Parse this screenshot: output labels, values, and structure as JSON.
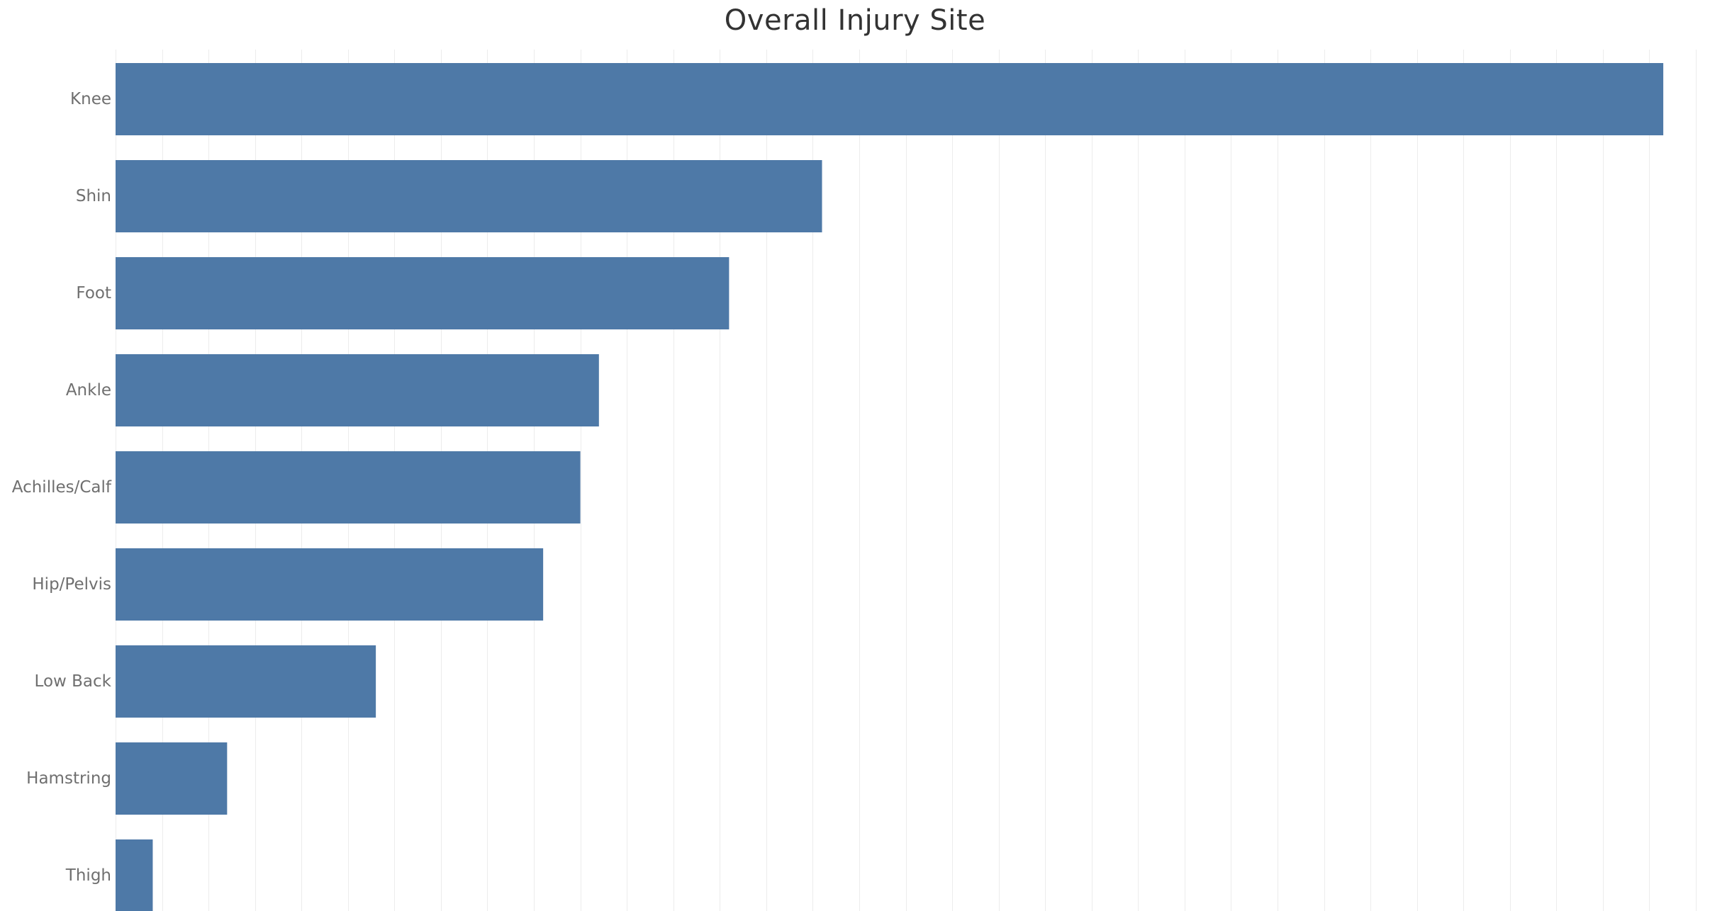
{
  "title": "Overall Injury Site",
  "colors": {
    "bar": "#4e79a7",
    "gridline": "#ececec",
    "label": "#6f6f6f",
    "title": "#333333",
    "background": "#ffffff"
  },
  "chart_data": {
    "type": "bar",
    "orientation": "horizontal",
    "title": "Overall Injury Site",
    "xlabel": "",
    "ylabel": "",
    "categories": [
      "Knee",
      "Shin",
      "Foot",
      "Ankle",
      "Achilles/Calf",
      "Hip/Pelvis",
      "Low Back",
      "Hamstring",
      "Thigh"
    ],
    "values": [
      333,
      152,
      132,
      104,
      100,
      92,
      56,
      24,
      8
    ],
    "xlim": [
      0,
      340
    ],
    "x_tick_step": 10,
    "grid": true,
    "x_axis_labels_shown": false
  }
}
